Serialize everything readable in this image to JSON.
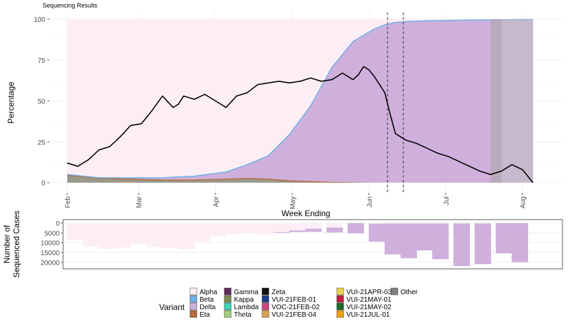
{
  "chart_data": {
    "type": "area",
    "title": "Sequencing Results",
    "top_panel": {
      "xlabel": "Week Ending",
      "ylabel": "Percentage",
      "ylim": [
        0,
        100
      ],
      "yticks": [
        0,
        25,
        50,
        75,
        100
      ],
      "x_tick_labels": [
        "Feb",
        "Mar",
        "Apr",
        "May",
        "Jun",
        "Jul",
        "Aug"
      ],
      "grid": true,
      "stacked_area": {
        "x_weeks": [
          0,
          6,
          12,
          18,
          24,
          30,
          34,
          38,
          42,
          46,
          50,
          54,
          58,
          60,
          62,
          64,
          68,
          72,
          76,
          80,
          84,
          86,
          88
        ],
        "delta_pct": [
          0,
          0,
          0.5,
          1,
          2,
          4,
          8,
          14,
          28,
          46,
          70,
          86,
          94,
          96.5,
          98,
          98.5,
          99,
          99.2,
          99.5,
          99.6,
          99.7,
          99.8,
          99.8
        ],
        "other_variants_pct": [
          5,
          3,
          2.5,
          2,
          2,
          2.5,
          3,
          2.5,
          1.5,
          1,
          0.5,
          0.3,
          0,
          0,
          0,
          0,
          0,
          0,
          0,
          0,
          0,
          0,
          0
        ]
      },
      "line_series": {
        "x_weeks": [
          0,
          2,
          4,
          6,
          8,
          10,
          12,
          14,
          16,
          18,
          20,
          21,
          22,
          24,
          26,
          28,
          30,
          32,
          34,
          36,
          38,
          40,
          42,
          44,
          46,
          48,
          50,
          52,
          54,
          55,
          56,
          57,
          58,
          59,
          60,
          61,
          62,
          64,
          66,
          68,
          70,
          72,
          74,
          76,
          78,
          80,
          82,
          84,
          86,
          88
        ],
        "values": [
          12,
          10,
          14,
          20,
          22,
          28,
          35,
          36,
          44,
          53,
          46,
          48,
          53,
          51,
          54,
          50,
          46,
          53,
          55,
          60,
          61,
          62,
          61,
          62,
          64,
          62,
          63,
          67,
          63,
          66,
          71,
          69,
          65,
          60,
          55,
          42,
          30,
          26,
          24,
          21,
          18,
          16,
          13,
          10,
          7,
          5,
          7,
          11,
          8,
          0
        ]
      },
      "vlines_weeks": [
        60.5,
        63.5
      ],
      "shaded_region_weeks": [
        80,
        88
      ]
    },
    "bottom_panel": {
      "ylabel": "Number of Sequenced Cases",
      "yticks": [
        0,
        5000,
        10000,
        15000,
        20000
      ],
      "ytick_labels": [
        "0",
        "5000",
        "10000",
        "15000",
        "20000"
      ],
      "bars": {
        "x_weeks": [
          1,
          4,
          7,
          10,
          13,
          16,
          19,
          22,
          25,
          28,
          31,
          34,
          37,
          40,
          43,
          46,
          50,
          54,
          58,
          61,
          64,
          67,
          70,
          74,
          78,
          82,
          85
        ],
        "totals": [
          8800,
          12000,
          13200,
          12500,
          10600,
          12300,
          12700,
          13500,
          9500,
          6800,
          5600,
          5200,
          5800,
          5000,
          4600,
          4500,
          4800,
          5300,
          9500,
          16000,
          18000,
          14000,
          18500,
          22000,
          21000,
          15500,
          20000
        ],
        "delta_counts": [
          0,
          0,
          0,
          0,
          0,
          0,
          0,
          0,
          0,
          0,
          0,
          0,
          0,
          400,
          800,
          1600,
          2500,
          5200,
          9200,
          15800,
          17800,
          13800,
          18300,
          21800,
          20800,
          15400,
          19900
        ]
      }
    },
    "legend": {
      "title": "Variant",
      "columns": [
        [
          "Alpha",
          "Beta",
          "Delta",
          "Eta"
        ],
        [
          "Gamma",
          "Kappa",
          "Lambda",
          "Theta"
        ],
        [
          "Zeta",
          "VUI-21FEB-01",
          "VOC-21FEB-02",
          "VUI-21FEB-04"
        ],
        [
          "VUI-21APR-03",
          "VUI-21MAY-01",
          "VUI-21MAY-02",
          "VUI-21JUL-01"
        ],
        [
          "Other"
        ]
      ],
      "colors": {
        "Alpha": "#fdeef5",
        "Beta": "#6fb1e4",
        "Delta": "#cfb0dd",
        "Eta": "#b86b3b",
        "Gamma": "#5e2a5a",
        "Kappa": "#7d8a4e",
        "Lambda": "#3fd5b8",
        "Theta": "#a3cf7c",
        "Zeta": "#111111",
        "VUI-21FEB-01": "#1d3f8a",
        "VOC-21FEB-02": "#d0447f",
        "VUI-21FEB-04": "#d9a354",
        "VUI-21APR-03": "#ecd351",
        "VUI-21MAY-01": "#c21e46",
        "VUI-21MAY-02": "#1f6a25",
        "VUI-21JUL-01": "#f0a20c",
        "Other": "#808080"
      },
      "placement": "bottom"
    }
  }
}
